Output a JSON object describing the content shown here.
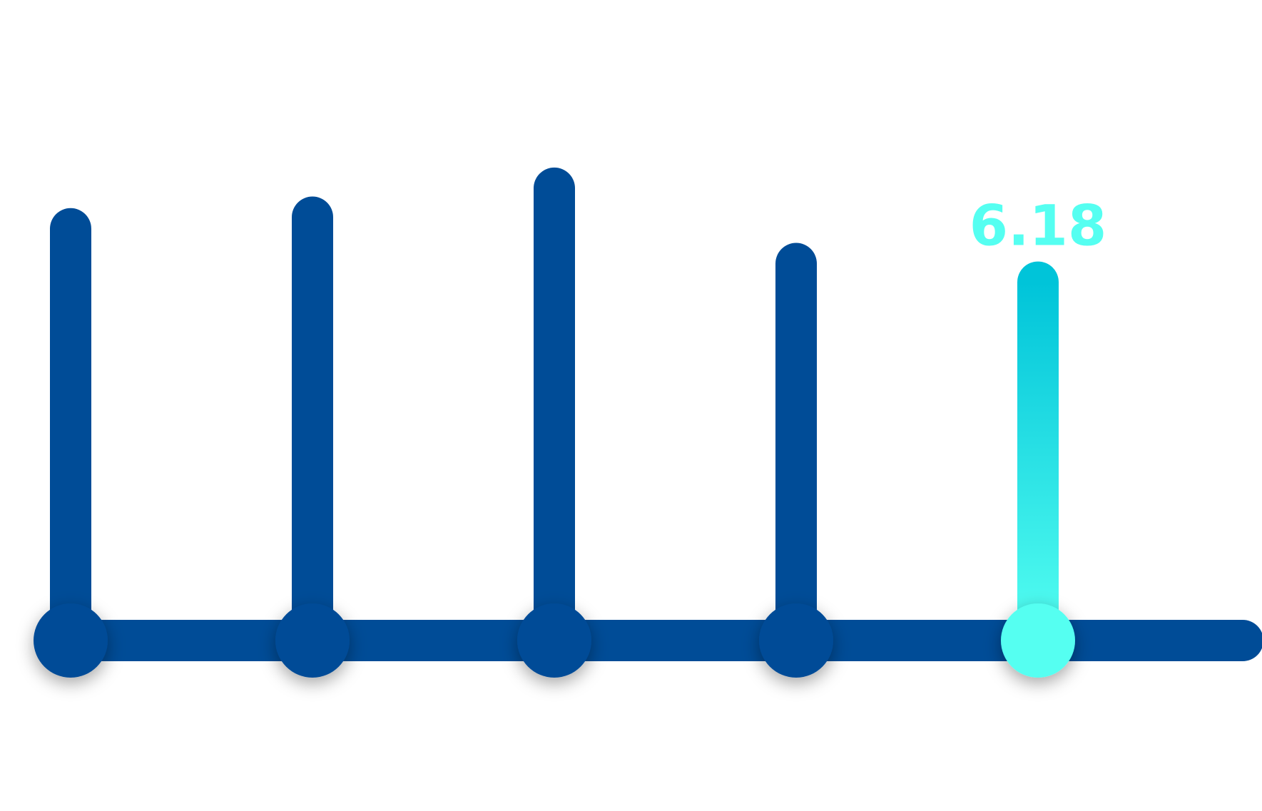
{
  "chart_data": {
    "type": "bar",
    "style": "lollipop",
    "categories": [
      "",
      "",
      "",
      "",
      ""
    ],
    "values": [
      7.1,
      7.3,
      7.8,
      6.5,
      6.18
    ],
    "ylim": [
      0,
      10
    ],
    "highlight_index": 4,
    "data_labels": [
      "",
      "",
      "",
      "",
      "6.18"
    ],
    "grid": false,
    "legend": "none",
    "title": "",
    "xlabel": "",
    "ylabel": ""
  },
  "colors": {
    "bar": "#004C97",
    "highlight_top": "#00C4D9",
    "highlight_bottom": "#55FFF1",
    "label": "#55FFF1",
    "background": "#FFFFFF"
  }
}
